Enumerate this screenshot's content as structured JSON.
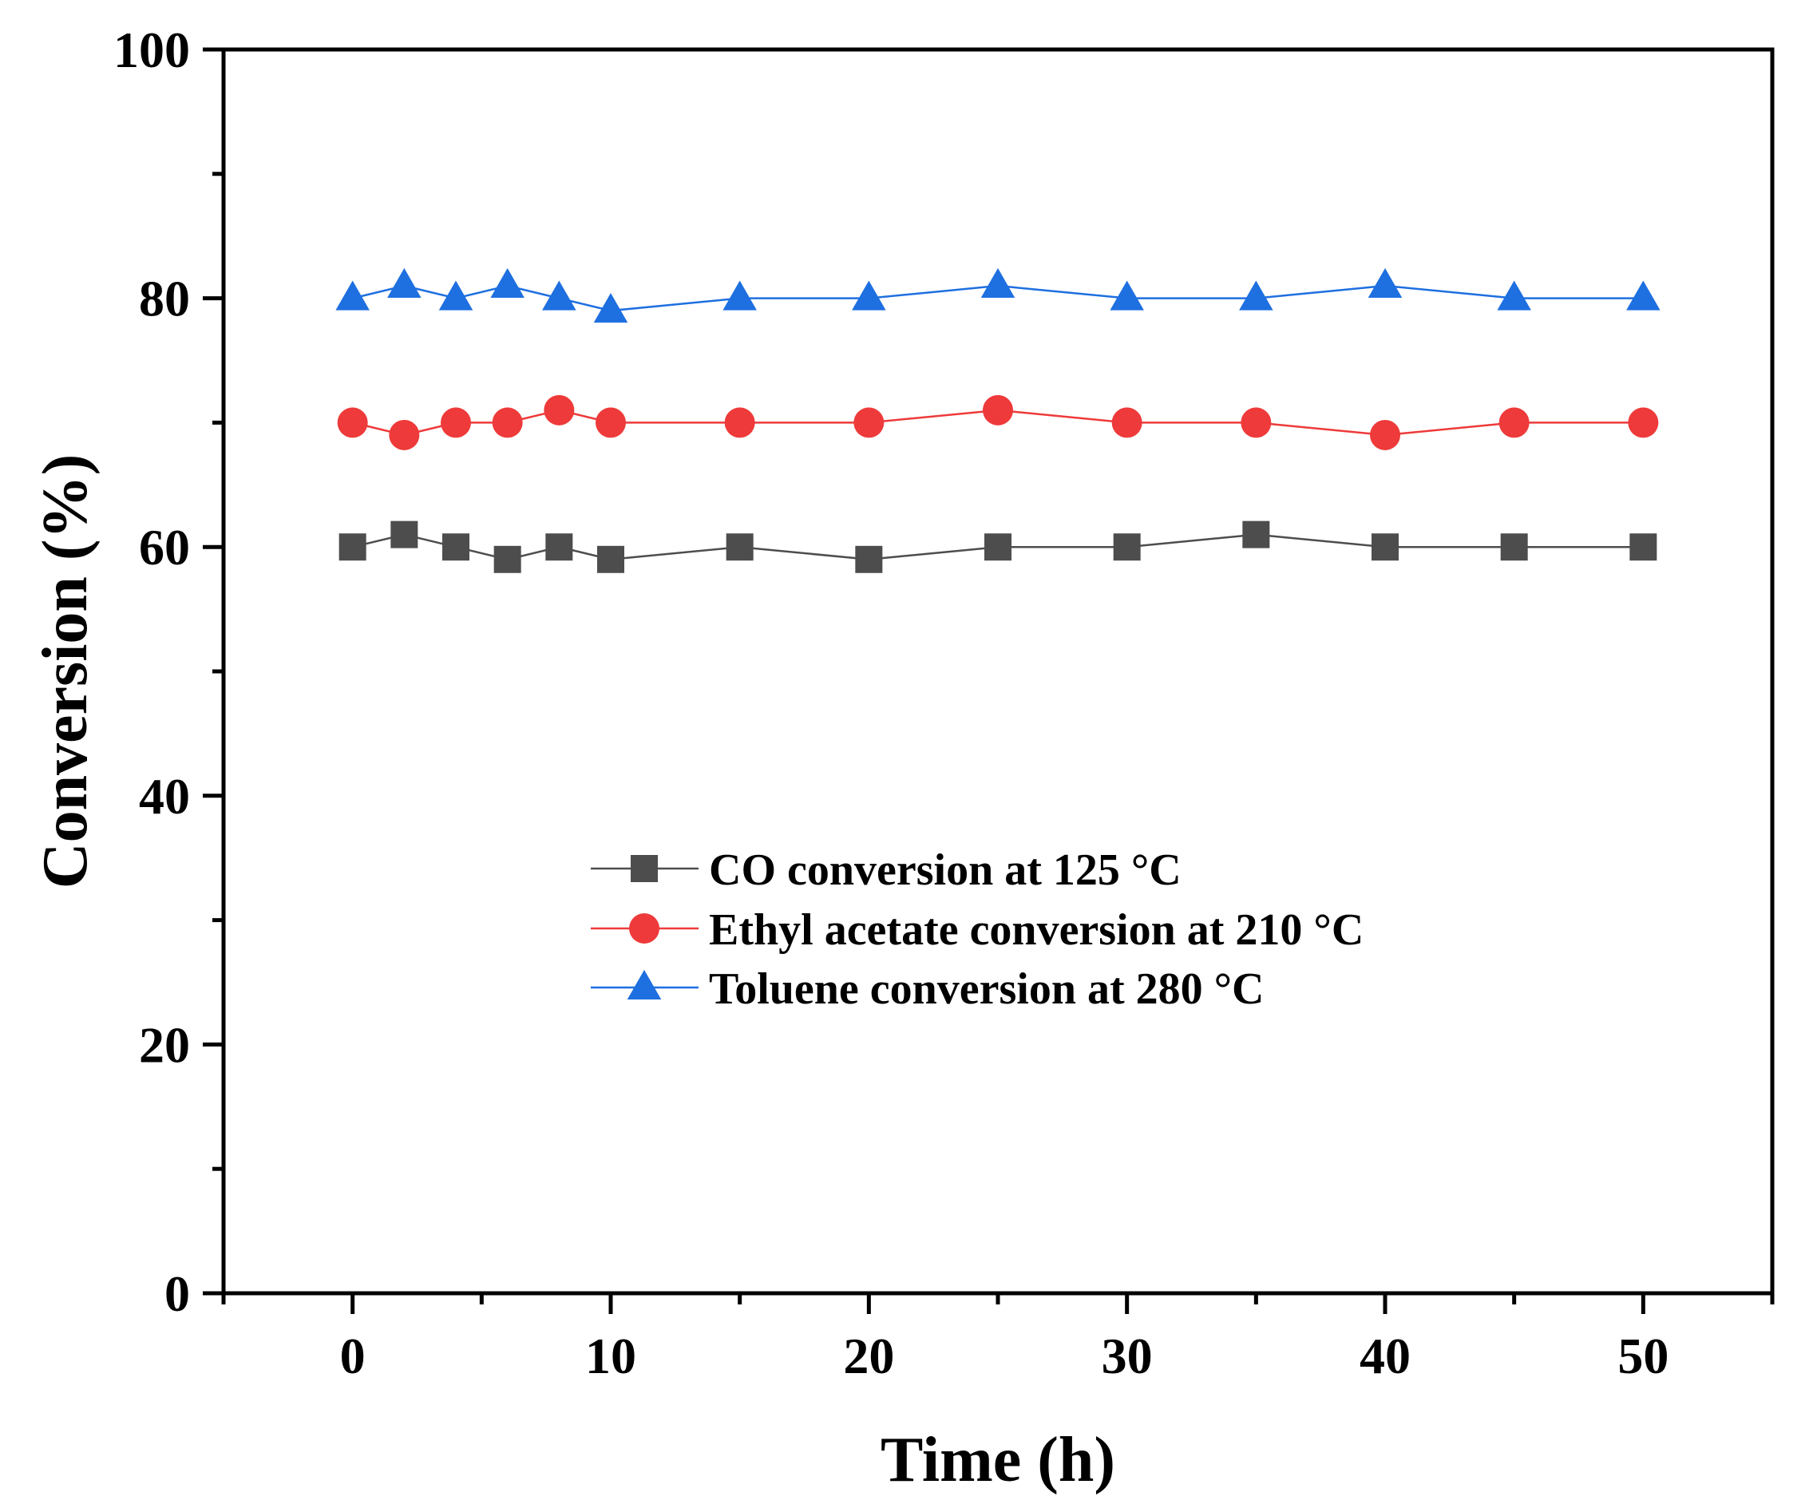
{
  "chart_data": {
    "type": "line",
    "title": "",
    "xlabel": "Time (h)",
    "ylabel": "Conversion (%)",
    "xlim": [
      -5,
      55
    ],
    "ylim": [
      0,
      100
    ],
    "xticks": [
      0,
      10,
      20,
      30,
      40,
      50
    ],
    "yticks": [
      0,
      20,
      40,
      60,
      80,
      100
    ],
    "x": [
      0,
      2,
      4,
      6,
      8,
      10,
      15,
      20,
      25,
      30,
      35,
      40,
      45,
      50
    ],
    "grid": false,
    "legend_position": "center",
    "series": [
      {
        "name": "CO conversion at 125 °C",
        "color": "#4d4d4d",
        "marker": "square",
        "values": [
          60,
          61,
          60,
          59,
          60,
          59,
          60,
          59,
          60,
          60,
          61,
          60,
          60,
          60
        ]
      },
      {
        "name": "Ethyl acetate conversion at 210 °C",
        "color": "#ee3a3a",
        "marker": "circle",
        "values": [
          70,
          69,
          70,
          70,
          71,
          70,
          70,
          70,
          71,
          70,
          70,
          69,
          70,
          70
        ]
      },
      {
        "name": "Toluene conversion at 280 °C",
        "color": "#1e6fe0",
        "marker": "triangle",
        "values": [
          80,
          81,
          80,
          81,
          80,
          79,
          80,
          80,
          81,
          80,
          80,
          81,
          80,
          80
        ]
      }
    ]
  }
}
